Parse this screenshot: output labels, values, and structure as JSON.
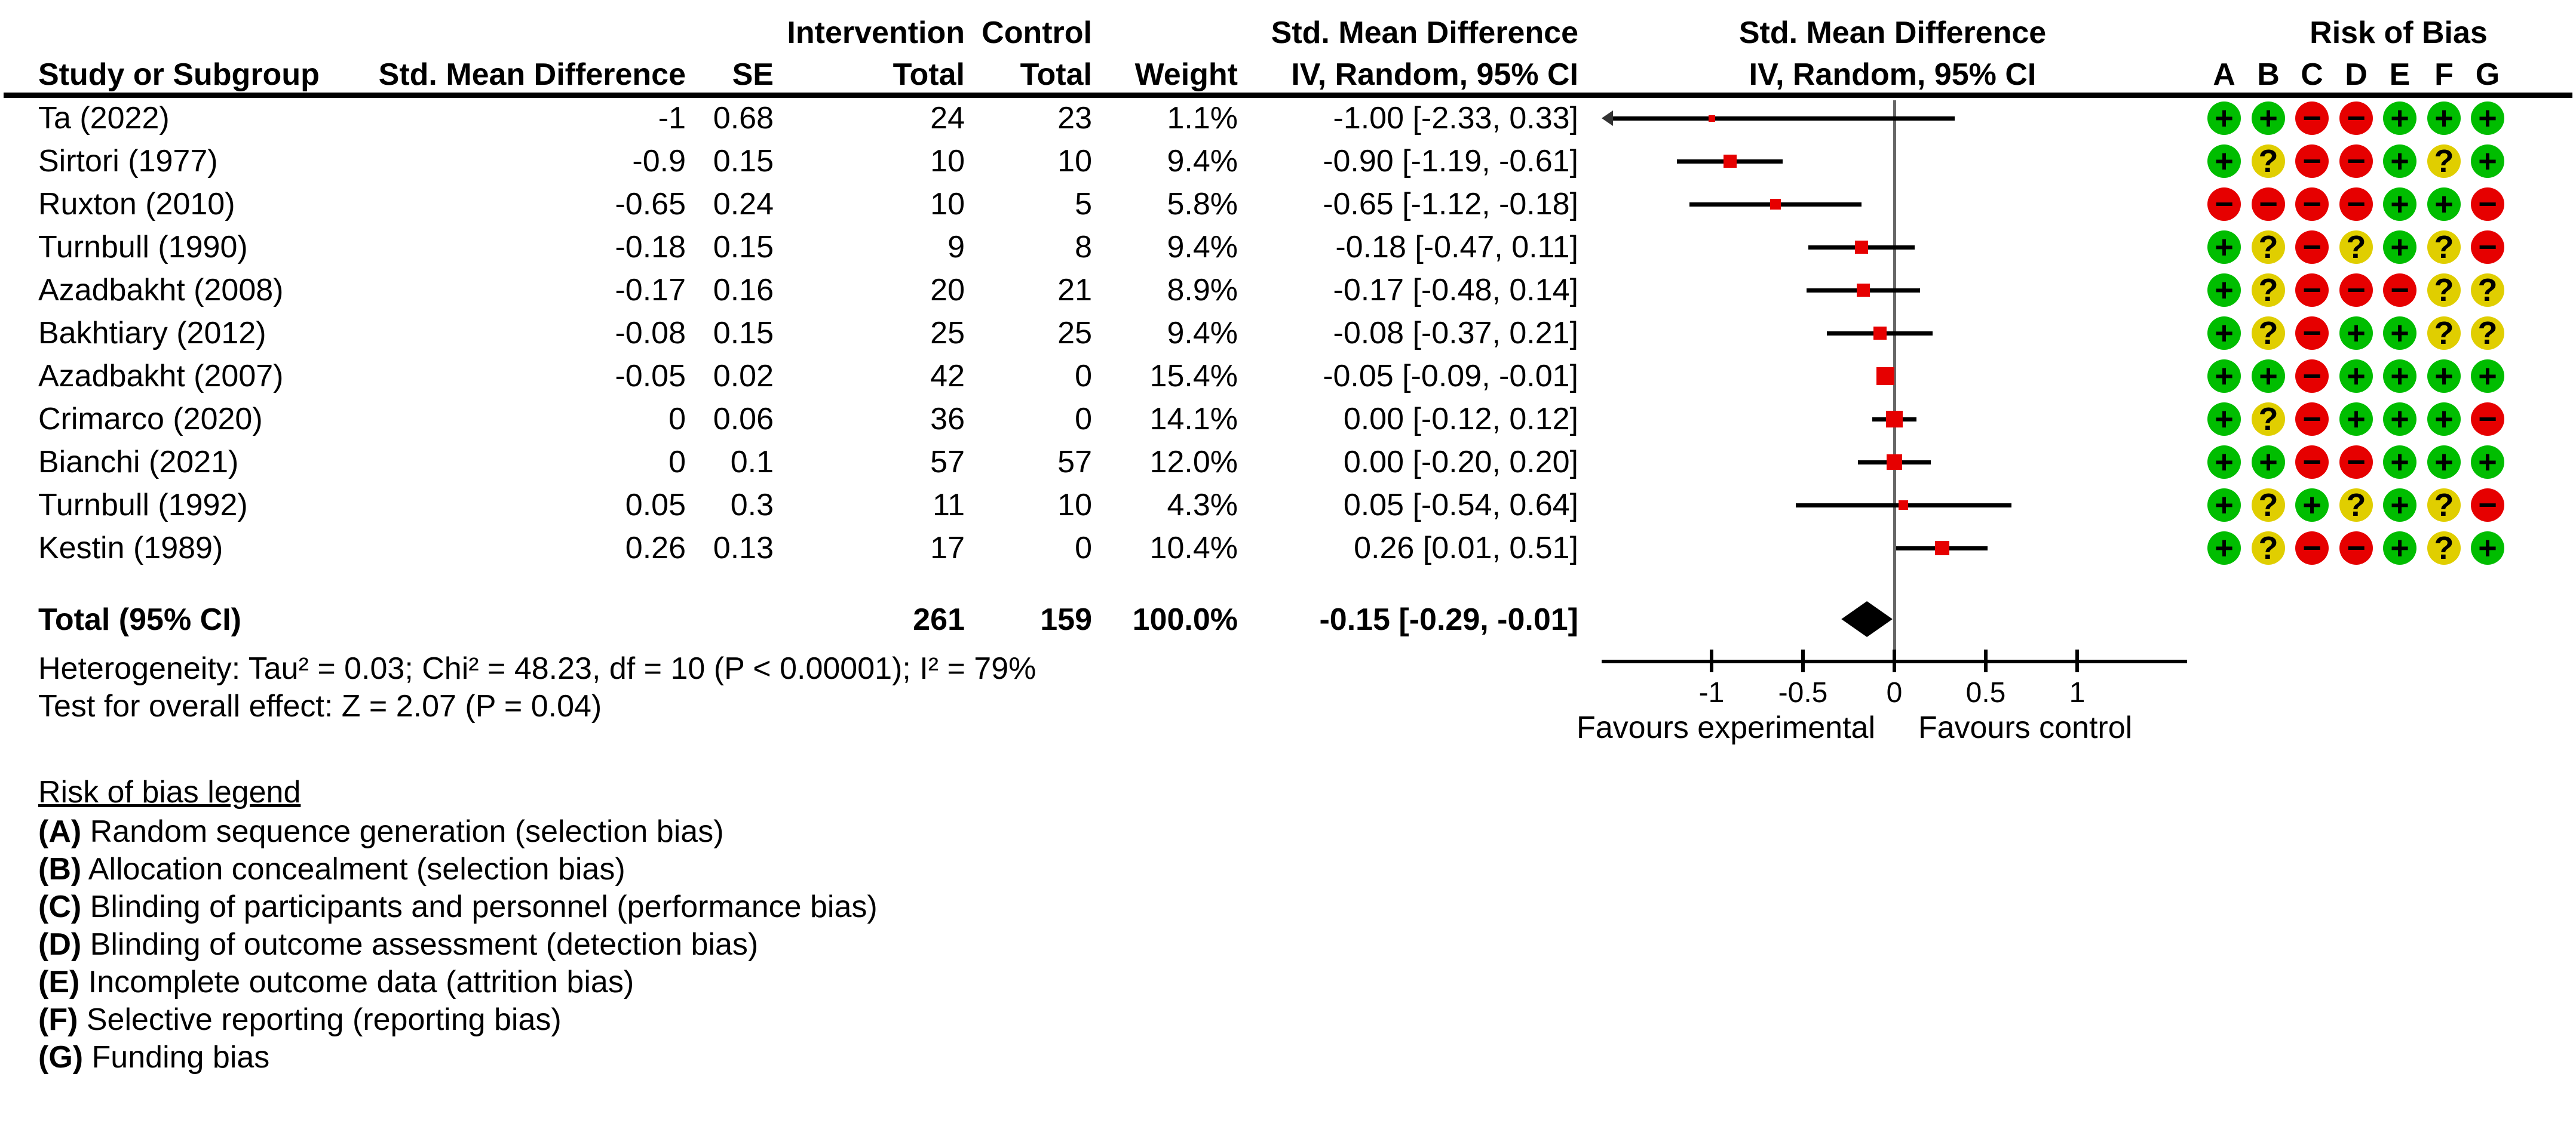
{
  "header": {
    "row1": {
      "intervention": "Intervention",
      "control": "Control",
      "smd_text": "Std. Mean Difference",
      "smd_plot": "Std. Mean Difference",
      "risk_of_bias": "Risk of Bias"
    },
    "row2": {
      "study": "Study or Subgroup",
      "smd": "Std. Mean Difference",
      "se": "SE",
      "total_intervention": "Total",
      "total_control": "Total",
      "weight": "Weight",
      "ci_text": "IV, Random, 95% CI",
      "ci_plot": "IV, Random, 95% CI"
    },
    "rob_letters": [
      "A",
      "B",
      "C",
      "D",
      "E",
      "F",
      "G"
    ]
  },
  "chart_data": {
    "type": "forest",
    "effect_measure": "Std. Mean Difference (IV, Random, 95% CI)",
    "xlim": [
      -1.6,
      1.6
    ],
    "axis": {
      "ticks": [
        -1,
        -0.5,
        0,
        0.5,
        1
      ],
      "tick_labels": [
        "-1",
        "-0.5",
        "0",
        "0.5",
        "1"
      ],
      "favours_left": "Favours experimental",
      "favours_right": "Favours control"
    },
    "studies": [
      {
        "name": "Ta (2022)",
        "smd": "-1",
        "se": "0.68",
        "n1": "24",
        "n2": "23",
        "weight": "1.1%",
        "ci": "-1.00 [-2.33, 0.33]",
        "est": -1.0,
        "lo": -2.33,
        "hi": 0.33,
        "weight_pct": 1.1,
        "rob": [
          "+",
          "+",
          "-",
          "-",
          "+",
          "+",
          "+"
        ]
      },
      {
        "name": "Sirtori (1977)",
        "smd": "-0.9",
        "se": "0.15",
        "n1": "10",
        "n2": "10",
        "weight": "9.4%",
        "ci": "-0.90 [-1.19, -0.61]",
        "est": -0.9,
        "lo": -1.19,
        "hi": -0.61,
        "weight_pct": 9.4,
        "rob": [
          "+",
          "?",
          "-",
          "-",
          "+",
          "?",
          "+"
        ]
      },
      {
        "name": "Ruxton (2010)",
        "smd": "-0.65",
        "se": "0.24",
        "n1": "10",
        "n2": "5",
        "weight": "5.8%",
        "ci": "-0.65 [-1.12, -0.18]",
        "est": -0.65,
        "lo": -1.12,
        "hi": -0.18,
        "weight_pct": 5.8,
        "rob": [
          "-",
          "-",
          "-",
          "-",
          "+",
          "+",
          "-"
        ]
      },
      {
        "name": "Turnbull (1990)",
        "smd": "-0.18",
        "se": "0.15",
        "n1": "9",
        "n2": "8",
        "weight": "9.4%",
        "ci": "-0.18 [-0.47, 0.11]",
        "est": -0.18,
        "lo": -0.47,
        "hi": 0.11,
        "weight_pct": 9.4,
        "rob": [
          "+",
          "?",
          "-",
          "?",
          "+",
          "?",
          "-"
        ]
      },
      {
        "name": "Azadbakht (2008)",
        "smd": "-0.17",
        "se": "0.16",
        "n1": "20",
        "n2": "21",
        "weight": "8.9%",
        "ci": "-0.17 [-0.48, 0.14]",
        "est": -0.17,
        "lo": -0.48,
        "hi": 0.14,
        "weight_pct": 8.9,
        "rob": [
          "+",
          "?",
          "-",
          "-",
          "-",
          "?",
          "?"
        ]
      },
      {
        "name": "Bakhtiary (2012)",
        "smd": "-0.08",
        "se": "0.15",
        "n1": "25",
        "n2": "25",
        "weight": "9.4%",
        "ci": "-0.08 [-0.37, 0.21]",
        "est": -0.08,
        "lo": -0.37,
        "hi": 0.21,
        "weight_pct": 9.4,
        "rob": [
          "+",
          "?",
          "-",
          "+",
          "+",
          "?",
          "?"
        ]
      },
      {
        "name": "Azadbakht (2007)",
        "smd": "-0.05",
        "se": "0.02",
        "n1": "42",
        "n2": "0",
        "weight": "15.4%",
        "ci": "-0.05 [-0.09, -0.01]",
        "est": -0.05,
        "lo": -0.09,
        "hi": -0.01,
        "weight_pct": 15.4,
        "rob": [
          "+",
          "+",
          "-",
          "+",
          "+",
          "+",
          "+"
        ]
      },
      {
        "name": "Crimarco (2020)",
        "smd": "0",
        "se": "0.06",
        "n1": "36",
        "n2": "0",
        "weight": "14.1%",
        "ci": "0.00 [-0.12, 0.12]",
        "est": 0.0,
        "lo": -0.12,
        "hi": 0.12,
        "weight_pct": 14.1,
        "rob": [
          "+",
          "?",
          "-",
          "+",
          "+",
          "+",
          "-"
        ]
      },
      {
        "name": "Bianchi (2021)",
        "smd": "0",
        "se": "0.1",
        "n1": "57",
        "n2": "57",
        "weight": "12.0%",
        "ci": "0.00 [-0.20, 0.20]",
        "est": 0.0,
        "lo": -0.2,
        "hi": 0.2,
        "weight_pct": 12.0,
        "rob": [
          "+",
          "+",
          "-",
          "-",
          "+",
          "+",
          "+"
        ]
      },
      {
        "name": "Turnbull (1992)",
        "smd": "0.05",
        "se": "0.3",
        "n1": "11",
        "n2": "10",
        "weight": "4.3%",
        "ci": "0.05 [-0.54, 0.64]",
        "est": 0.05,
        "lo": -0.54,
        "hi": 0.64,
        "weight_pct": 4.3,
        "rob": [
          "+",
          "?",
          "+",
          "?",
          "+",
          "?",
          "-"
        ]
      },
      {
        "name": "Kestin (1989)",
        "smd": "0.26",
        "se": "0.13",
        "n1": "17",
        "n2": "0",
        "weight": "10.4%",
        "ci": "0.26 [0.01, 0.51]",
        "est": 0.26,
        "lo": 0.01,
        "hi": 0.51,
        "weight_pct": 10.4,
        "rob": [
          "+",
          "?",
          "-",
          "-",
          "+",
          "?",
          "+"
        ]
      }
    ],
    "total": {
      "label": "Total (95% CI)",
      "n1": "261",
      "n2": "159",
      "weight": "100.0%",
      "ci": "-0.15 [-0.29, -0.01]",
      "est": -0.15,
      "lo": -0.29,
      "hi": -0.01
    }
  },
  "stats": {
    "heterogeneity": "Heterogeneity: Tau² = 0.03; Chi² = 48.23, df = 10 (P < 0.00001); I² = 79%",
    "overall_effect": "Test for overall effect: Z = 2.07 (P = 0.04)"
  },
  "legend": {
    "title": "Risk of bias legend",
    "items": [
      {
        "label": "(A)",
        "text": "Random sequence generation (selection bias)"
      },
      {
        "label": "(B)",
        "text": "Allocation concealment (selection bias)"
      },
      {
        "label": "(C)",
        "text": "Blinding of participants and personnel (performance bias)"
      },
      {
        "label": "(D)",
        "text": "Blinding of outcome assessment (detection bias)"
      },
      {
        "label": "(E)",
        "text": "Incomplete outcome data (attrition bias)"
      },
      {
        "label": "(F)",
        "text": "Selective reporting (reporting bias)"
      },
      {
        "label": "(G)",
        "text": "Funding bias"
      }
    ]
  },
  "rob_style": {
    "+": {
      "glyph": "+",
      "color": "#00BD00"
    },
    "?": {
      "glyph": "?",
      "color": "#E0CE00"
    },
    "-": {
      "glyph": "−",
      "color": "#E60000"
    }
  },
  "colors": {
    "marker": "#E60000",
    "line": "#000000",
    "zero_line": "#666666",
    "axis": "#000000",
    "diamond": "#000000",
    "arrow": "#333333"
  }
}
